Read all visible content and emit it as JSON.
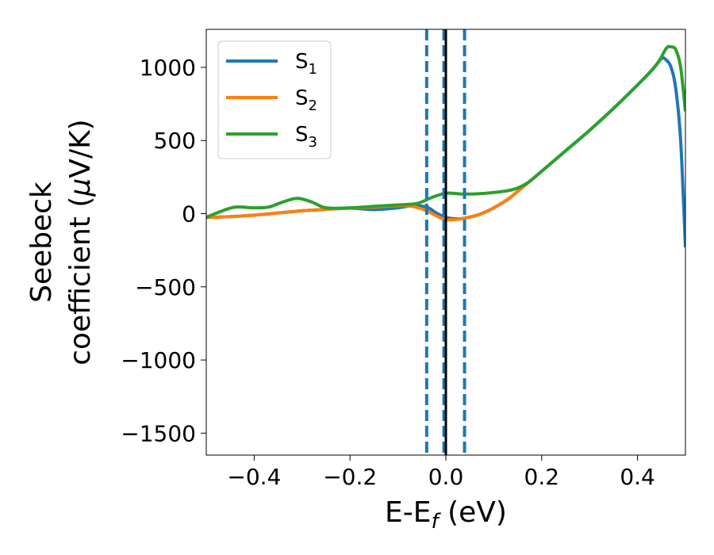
{
  "chart_data": {
    "type": "line",
    "xlabel": {
      "base": "E-E",
      "sub": "f",
      "suffix": " (eV)"
    },
    "ylabel": {
      "line1": "Seebeck",
      "line2_prefix": "coefficient  (",
      "mu": "μ",
      "line2_suffix": "V/K)"
    },
    "xlim": [
      -0.5,
      0.5
    ],
    "ylim": [
      -1650,
      1260
    ],
    "xticks": [
      -0.4,
      -0.2,
      0.0,
      0.2,
      0.4
    ],
    "xtick_labels": [
      "−0.4",
      "−0.2",
      "0.0",
      "0.2",
      "0.4"
    ],
    "yticks": [
      -1500,
      -1000,
      -500,
      0,
      500,
      1000
    ],
    "ytick_labels": [
      "−1500",
      "−1000",
      "−500",
      "0",
      "500",
      "1000"
    ],
    "grid": false,
    "legend": {
      "placement": "upper-left"
    },
    "series": [
      {
        "name": {
          "base": "S",
          "sub": "1"
        },
        "color": "#1f77b4",
        "points": [
          [
            -0.5,
            -25
          ],
          [
            -0.45,
            -20
          ],
          [
            -0.4,
            -10
          ],
          [
            -0.35,
            5
          ],
          [
            -0.3,
            20
          ],
          [
            -0.25,
            30
          ],
          [
            -0.2,
            38
          ],
          [
            -0.15,
            28
          ],
          [
            -0.1,
            40
          ],
          [
            -0.07,
            55
          ],
          [
            -0.04,
            45
          ],
          [
            -0.02,
            5
          ],
          [
            0.0,
            -25
          ],
          [
            0.02,
            -35
          ],
          [
            0.04,
            -30
          ],
          [
            0.07,
            -5
          ],
          [
            0.1,
            40
          ],
          [
            0.13,
            100
          ],
          [
            0.16,
            180
          ],
          [
            0.2,
            290
          ],
          [
            0.25,
            430
          ],
          [
            0.3,
            570
          ],
          [
            0.35,
            720
          ],
          [
            0.4,
            880
          ],
          [
            0.43,
            980
          ],
          [
            0.45,
            1060
          ],
          [
            0.46,
            1050
          ],
          [
            0.47,
            1000
          ],
          [
            0.48,
            850
          ],
          [
            0.49,
            500
          ],
          [
            0.5,
            -230
          ]
        ]
      },
      {
        "name": {
          "base": "S",
          "sub": "2"
        },
        "color": "#ff7f0e",
        "points": [
          [
            -0.5,
            -25
          ],
          [
            -0.45,
            -20
          ],
          [
            -0.4,
            -10
          ],
          [
            -0.35,
            5
          ],
          [
            -0.3,
            20
          ],
          [
            -0.25,
            30
          ],
          [
            -0.2,
            38
          ],
          [
            -0.15,
            45
          ],
          [
            -0.1,
            55
          ],
          [
            -0.07,
            50
          ],
          [
            -0.04,
            20
          ],
          [
            -0.02,
            -15
          ],
          [
            0.0,
            -40
          ],
          [
            0.02,
            -40
          ],
          [
            0.04,
            -30
          ],
          [
            0.07,
            -5
          ],
          [
            0.1,
            40
          ],
          [
            0.13,
            100
          ],
          [
            0.16,
            180
          ],
          [
            0.2,
            290
          ]
        ]
      },
      {
        "name": {
          "base": "S",
          "sub": "3"
        },
        "color": "#2ca02c",
        "points": [
          [
            -0.5,
            -25
          ],
          [
            -0.47,
            15
          ],
          [
            -0.44,
            45
          ],
          [
            -0.4,
            40
          ],
          [
            -0.37,
            45
          ],
          [
            -0.34,
            80
          ],
          [
            -0.31,
            105
          ],
          [
            -0.28,
            80
          ],
          [
            -0.25,
            40
          ],
          [
            -0.2,
            40
          ],
          [
            -0.15,
            50
          ],
          [
            -0.1,
            60
          ],
          [
            -0.06,
            70
          ],
          [
            -0.03,
            110
          ],
          [
            0.0,
            140
          ],
          [
            0.03,
            135
          ],
          [
            0.06,
            135
          ],
          [
            0.1,
            145
          ],
          [
            0.14,
            165
          ],
          [
            0.17,
            210
          ],
          [
            0.2,
            290
          ],
          [
            0.25,
            430
          ],
          [
            0.3,
            570
          ],
          [
            0.35,
            720
          ],
          [
            0.4,
            880
          ],
          [
            0.44,
            1020
          ],
          [
            0.46,
            1130
          ],
          [
            0.47,
            1140
          ],
          [
            0.48,
            1120
          ],
          [
            0.49,
            1000
          ],
          [
            0.5,
            700
          ]
        ]
      }
    ],
    "vlines": [
      {
        "x": -0.04,
        "style": "dashed",
        "color": "#1f77b4"
      },
      {
        "x": -0.004,
        "style": "dashed",
        "color": "#1f77b4"
      },
      {
        "x": 0.039,
        "style": "dashed",
        "color": "#1f77b4"
      },
      {
        "x": 0.0,
        "style": "solid",
        "color": "#000000"
      }
    ]
  }
}
